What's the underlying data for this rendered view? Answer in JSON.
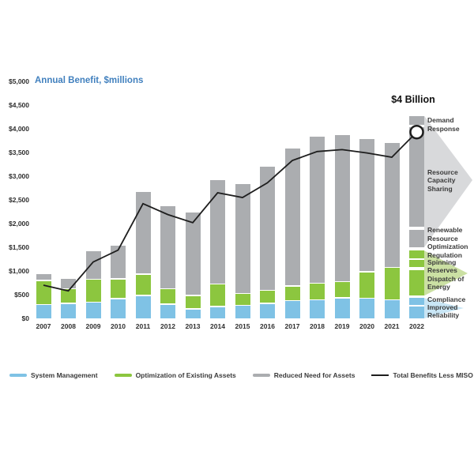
{
  "title": "Annual Benefit, $millions",
  "annotation": "$4 Billion",
  "chart_data": {
    "type": "bar",
    "subtype": "stacked-bars-with-line-overlay",
    "title": "Annual Benefit, $millions",
    "categories": [
      "2007",
      "2008",
      "2009",
      "2010",
      "2011",
      "2012",
      "2013",
      "2014",
      "2015",
      "2016",
      "2017",
      "2018",
      "2019",
      "2020",
      "2021",
      "2022"
    ],
    "series": [
      {
        "name": "System Management",
        "color": "#7FC2E5",
        "values": [
          280,
          300,
          330,
          400,
          470,
          290,
          190,
          240,
          260,
          300,
          360,
          380,
          420,
          410,
          380,
          400
        ]
      },
      {
        "name": "Optimization of Existing Assets",
        "color": "#8CC63F",
        "values": [
          510,
          310,
          480,
          420,
          450,
          320,
          280,
          470,
          250,
          280,
          310,
          350,
          340,
          560,
          680,
          850
        ]
      },
      {
        "name": "Reduced Need for Assets",
        "color": "#ABADB0",
        "values": [
          140,
          220,
          610,
          720,
          1750,
          1760,
          1770,
          2200,
          2320,
          2620,
          2910,
          3100,
          3110,
          2810,
          2640,
          2660
        ]
      }
    ],
    "line_series": {
      "name": "Total Benefits Less MISO Costs",
      "color": "#1E1E1E",
      "values": [
        700,
        580,
        1190,
        1440,
        2420,
        2190,
        2020,
        2650,
        2550,
        2860,
        3330,
        3520,
        3560,
        3490,
        3400,
        3930
      ],
      "end_marker": "open-circle",
      "end_annotation": "$4 Billion"
    },
    "ylim": [
      0,
      5000
    ],
    "ytick_step": 500,
    "ytick_labels": [
      "$0",
      "$500",
      "$1,000",
      "$1,500",
      "$2,000",
      "$2,500",
      "$3,000",
      "$3,500",
      "$4,000",
      "$4,500",
      "$5,000"
    ],
    "grid": false,
    "legend_position": "bottom",
    "bar_2022_exploded_segments": [
      {
        "label": "Improved Reliability",
        "series": "System Management",
        "from": 0,
        "to": 250
      },
      {
        "label": "Compliance",
        "series": "System Management",
        "from": 280,
        "to": 430
      },
      {
        "label": "Dispatch of Energy",
        "series": "Optimization of Existing Assets",
        "from": 480,
        "to": 1020
      },
      {
        "label": "Spinning Reserves",
        "series": "Optimization of Existing Assets",
        "from": 1080,
        "to": 1230
      },
      {
        "label": "Regulation",
        "series": "Optimization of Existing Assets",
        "from": 1270,
        "to": 1430
      },
      {
        "label": "Renewable Resource Optimization",
        "series": "Reduced Need for Assets",
        "from": 1500,
        "to": 1870
      },
      {
        "label": "Resource Capacity Sharing",
        "series": "Reduced Need for Assets",
        "from": 1930,
        "to": 4030
      },
      {
        "label": "Demand Response",
        "series": "Reduced Need for Assets",
        "from": 4080,
        "to": 4270
      }
    ]
  },
  "right_labels": [
    {
      "id": "demand-response",
      "text": "Demand Response"
    },
    {
      "id": "resource-capacity-sharing",
      "text": "Resource Capacity Sharing"
    },
    {
      "id": "renewable-resource-optimization",
      "text": "Renewable Resource Optimization"
    },
    {
      "id": "regulation",
      "text": "Regulation"
    },
    {
      "id": "spinning-reserves",
      "text": "Spinning Reserves"
    },
    {
      "id": "dispatch-of-energy",
      "text": "Dispatch of Energy"
    },
    {
      "id": "compliance",
      "text": "Compliance"
    },
    {
      "id": "improved-reliability",
      "text": "Improved Reliability"
    }
  ],
  "legend": [
    {
      "label": "System Management",
      "color": "#7FC2E5",
      "type": "bar"
    },
    {
      "label": "Optimization of Existing Assets",
      "color": "#8CC63F",
      "type": "bar"
    },
    {
      "label": "Reduced Need for Assets",
      "color": "#ABADB0",
      "type": "bar"
    },
    {
      "label": "Total Benefits Less MISO Costs",
      "color": "#1E1E1E",
      "type": "line"
    }
  ],
  "colors": {
    "title_blue": "#4180BE",
    "wedge_gray": "#D8D9DB",
    "wedge_green": "#CBE0A3",
    "wedge_blue": "#C9E6F5",
    "axis_text": "#2E2E2E"
  }
}
